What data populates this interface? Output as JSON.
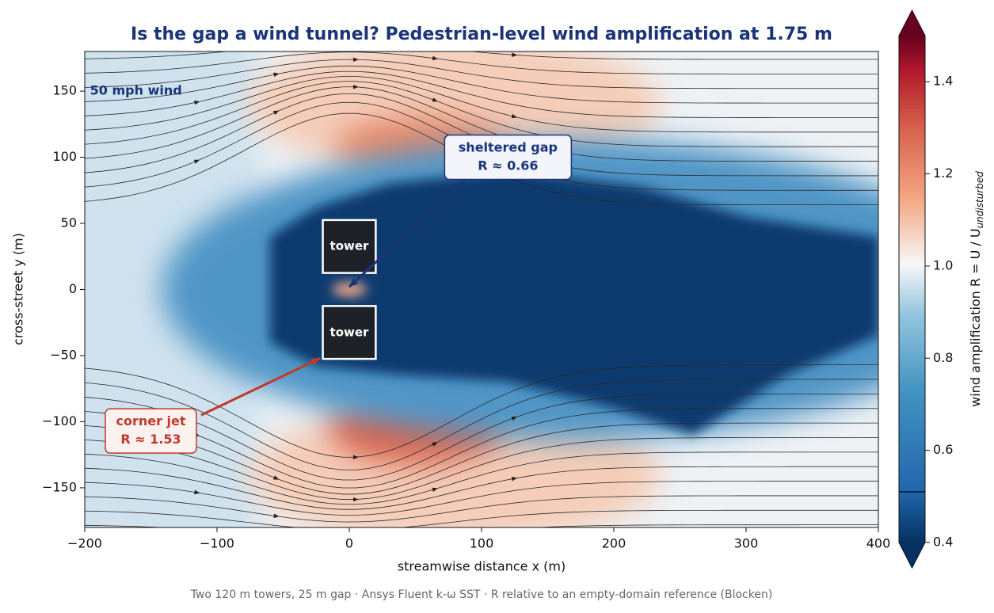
{
  "chart_data": {
    "type": "field",
    "title": "Is the gap a wind tunnel? Pedestrian-level wind amplification at 1.75 m",
    "xlabel": "streamwise distance x (m)",
    "ylabel": "cross-street y (m)",
    "xlim": [
      -200,
      400
    ],
    "ylim": [
      -180,
      180
    ],
    "xticks": [
      -200,
      -100,
      0,
      100,
      200,
      300,
      400
    ],
    "yticks": [
      -150,
      -100,
      -50,
      0,
      50,
      100,
      150
    ],
    "colorbar": {
      "label": "wind amplification   R = U / U",
      "label_subscript": "undisturbed",
      "lim": [
        0.4,
        1.5
      ],
      "ticks": [
        0.4,
        0.6,
        0.8,
        1.0,
        1.2,
        1.4
      ],
      "marker": 0.51,
      "extend": "both"
    },
    "towers": [
      {
        "label": "tower",
        "x": [
          -20,
          20
        ],
        "y": [
          12.5,
          52.5
        ]
      },
      {
        "label": "tower",
        "x": [
          -20,
          20
        ],
        "y": [
          -52.5,
          -12.5
        ]
      }
    ],
    "annotations": [
      {
        "lines": [
          "sheltered gap",
          "R ≈ 0.66"
        ],
        "color": "#1b3478"
      },
      {
        "lines": [
          "corner jet",
          "R ≈ 1.53"
        ],
        "color": "#c0392b"
      },
      {
        "lines": [
          "50 mph wind"
        ],
        "color": "#1b3478"
      }
    ],
    "footnote": "Two 120 m towers, 25 m gap  ·  Ansys Fluent k-ω SST  ·  R relative to an empty-domain reference (Blocken)"
  }
}
